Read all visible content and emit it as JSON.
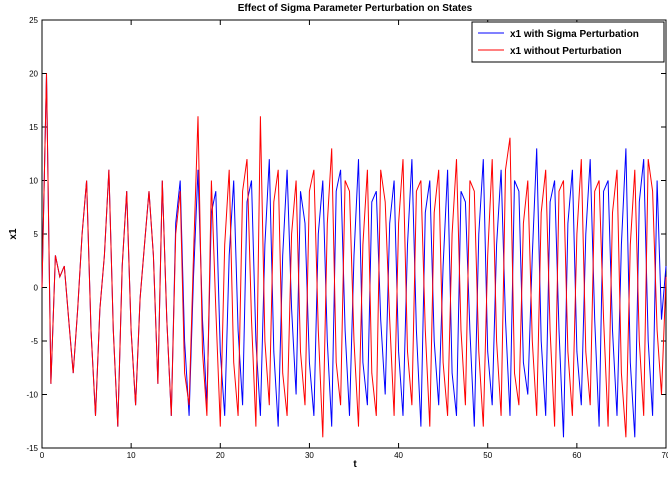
{
  "chart_data": {
    "type": "line",
    "title": "Effect of Sigma Parameter Perturbation on States",
    "x_label": "t",
    "y_label": "x1",
    "x": [
      0,
      0.5,
      1,
      1.5,
      2,
      2.5,
      3,
      3.5,
      4,
      4.5,
      5,
      5.5,
      6,
      6.5,
      7,
      7.5,
      8,
      8.5,
      9,
      9.5,
      10,
      10.5,
      11,
      11.5,
      12,
      12.5,
      13,
      13.5,
      14,
      14.5,
      15,
      15.5,
      16,
      16.5,
      17,
      17.5,
      18,
      18.5,
      19,
      19.5,
      20,
      20.5,
      21,
      21.5,
      22,
      22.5,
      23,
      23.5,
      24,
      24.5,
      25,
      25.5,
      26,
      26.5,
      27,
      27.5,
      28,
      28.5,
      29,
      29.5,
      30,
      30.5,
      31,
      31.5,
      32,
      32.5,
      33,
      33.5,
      34,
      34.5,
      35,
      35.5,
      36,
      36.5,
      37,
      37.5,
      38,
      38.5,
      39,
      39.5,
      40,
      40.5,
      41,
      41.5,
      42,
      42.5,
      43,
      43.5,
      44,
      44.5,
      45,
      45.5,
      46,
      46.5,
      47,
      47.5,
      48,
      48.5,
      49,
      49.5,
      50,
      50.5,
      51,
      51.5,
      52,
      52.5,
      53,
      53.5,
      54,
      54.5,
      55,
      55.5,
      56,
      56.5,
      57,
      57.5,
      58,
      58.5,
      59,
      59.5,
      60,
      60.5,
      61,
      61.5,
      62,
      62.5,
      63,
      63.5,
      64,
      64.5,
      65,
      65.5,
      66,
      66.5,
      67,
      67.5,
      68,
      68.5,
      69,
      69.5,
      70
    ],
    "series": [
      {
        "name": "x1 with Sigma Perturbation",
        "color": "#0000ff",
        "values": [
          0,
          20,
          -9,
          3,
          1,
          2,
          -3,
          -8,
          -2,
          5,
          10,
          -4,
          -12,
          -2,
          3,
          11,
          -4,
          -13,
          2,
          9,
          -4,
          -11,
          -1,
          4,
          9,
          3,
          -9,
          10,
          -3,
          -12,
          6,
          10,
          -5,
          -12,
          1,
          11,
          -3,
          -11,
          7,
          9,
          -6,
          -12,
          3,
          10,
          -4,
          -11,
          8,
          10,
          -5,
          -12,
          4,
          12,
          -6,
          -13,
          3,
          11,
          -2,
          -10,
          9,
          6,
          -7,
          -12,
          5,
          10,
          -5,
          -13,
          9,
          11,
          -4,
          -12,
          3,
          12,
          -7,
          -11,
          8,
          9,
          -3,
          -10,
          6,
          10,
          -6,
          -12,
          4,
          12,
          -4,
          -13,
          7,
          10,
          -5,
          -11,
          2,
          11,
          -8,
          -12,
          9,
          8,
          -4,
          -13,
          5,
          12,
          -6,
          -11,
          4,
          11,
          -3,
          -12,
          10,
          9,
          -7,
          -10,
          3,
          13,
          -5,
          -12,
          8,
          10,
          -4,
          -14,
          6,
          11,
          -6,
          -11,
          5,
          12,
          -3,
          -13,
          9,
          10,
          -4,
          -12,
          4,
          13,
          -7,
          -14,
          8,
          12,
          -5,
          -12,
          10,
          -3,
          2
        ]
      },
      {
        "name": "x1 without Perturbation",
        "color": "#ff0000",
        "values": [
          0,
          20,
          -9,
          3,
          1,
          2,
          -3,
          -8,
          -2,
          5,
          10,
          -4,
          -12,
          -2,
          3,
          11,
          -4,
          -13,
          2,
          9,
          -4,
          -11,
          -1,
          4,
          9,
          3,
          -9,
          10,
          -3,
          -12,
          5,
          9,
          -8,
          -11,
          3,
          16,
          -6,
          -12,
          10,
          -2,
          -13,
          4,
          11,
          -7,
          -12,
          9,
          12,
          -3,
          -13,
          16,
          -5,
          -11,
          8,
          11,
          -8,
          -12,
          5,
          10,
          -6,
          -11,
          9,
          11,
          -4,
          -14,
          6,
          13,
          -7,
          -11,
          10,
          9,
          -5,
          -13,
          4,
          11,
          -8,
          -12,
          11,
          8,
          -3,
          -12,
          6,
          12,
          -6,
          -11,
          9,
          10,
          -4,
          -13,
          7,
          11,
          -7,
          -12,
          5,
          12,
          -4,
          -11,
          10,
          9,
          -6,
          -13,
          3,
          12,
          -5,
          -12,
          11,
          14,
          -8,
          -11,
          6,
          10,
          -5,
          -12,
          7,
          11,
          -4,
          -13,
          9,
          10,
          -6,
          -12,
          5,
          12,
          -6,
          -11,
          9,
          10,
          -3,
          -13,
          7,
          11,
          -8,
          -14,
          4,
          11,
          -5,
          -12,
          12,
          9,
          -4,
          -10,
          1
        ]
      }
    ],
    "xlim": [
      0,
      70
    ],
    "ylim": [
      -15,
      25
    ],
    "xticks": [
      0,
      10,
      20,
      30,
      40,
      50,
      60,
      70
    ],
    "yticks": [
      -15,
      -10,
      -5,
      0,
      5,
      10,
      15,
      20,
      25
    ],
    "legend": "upper right"
  }
}
